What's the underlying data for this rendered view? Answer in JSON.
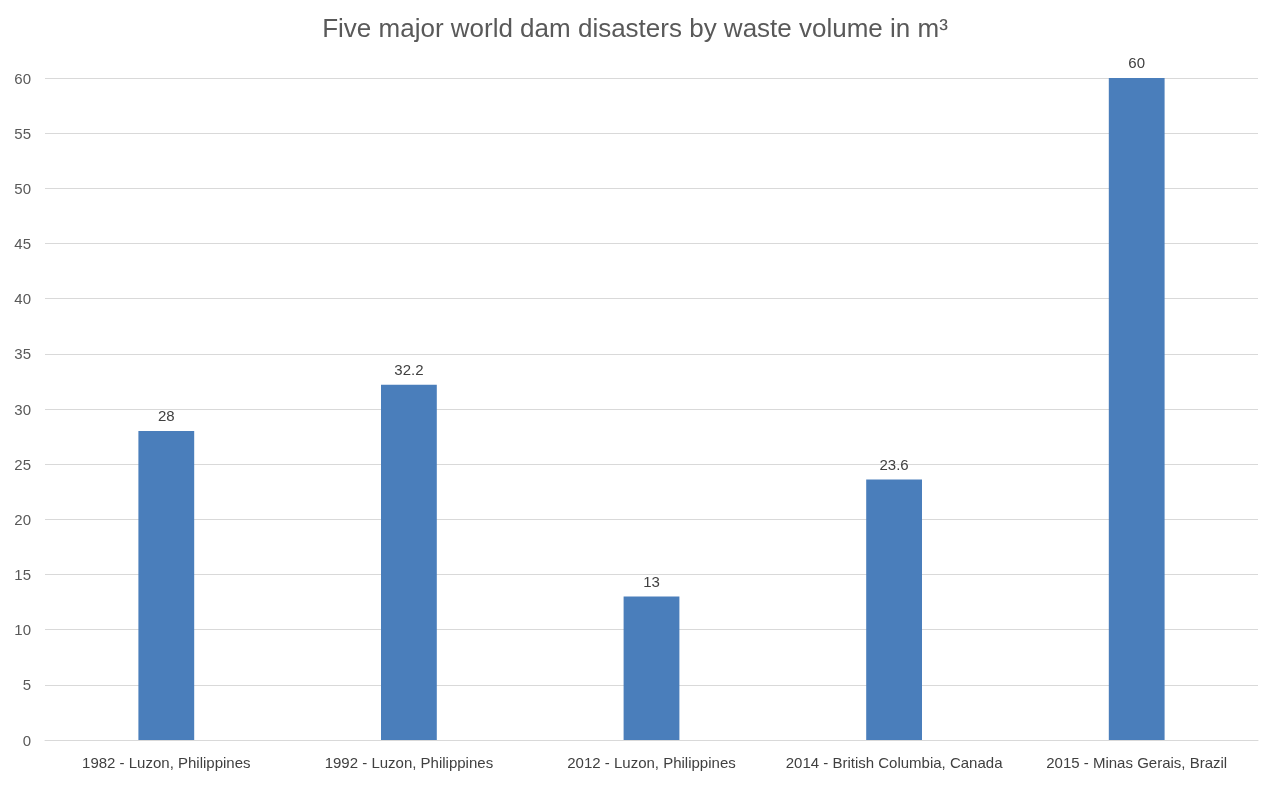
{
  "chart_data": {
    "type": "bar",
    "title": "Five major world dam disasters by waste volume in m³",
    "categories": [
      "1982 - Luzon, Philippines",
      "1992 - Luzon, Philippines",
      "2012 - Luzon, Philippines",
      "2014 - British Columbia, Canada",
      "2015 - Minas Gerais, Brazil"
    ],
    "values": [
      28,
      32.2,
      13,
      23.6,
      60
    ],
    "color": "#4a7ebb",
    "ylim": [
      0,
      60
    ],
    "yticks": [
      0,
      5,
      10,
      15,
      20,
      25,
      30,
      35,
      40,
      45,
      50,
      55,
      60
    ],
    "grid": "y",
    "data_labels": true
  }
}
